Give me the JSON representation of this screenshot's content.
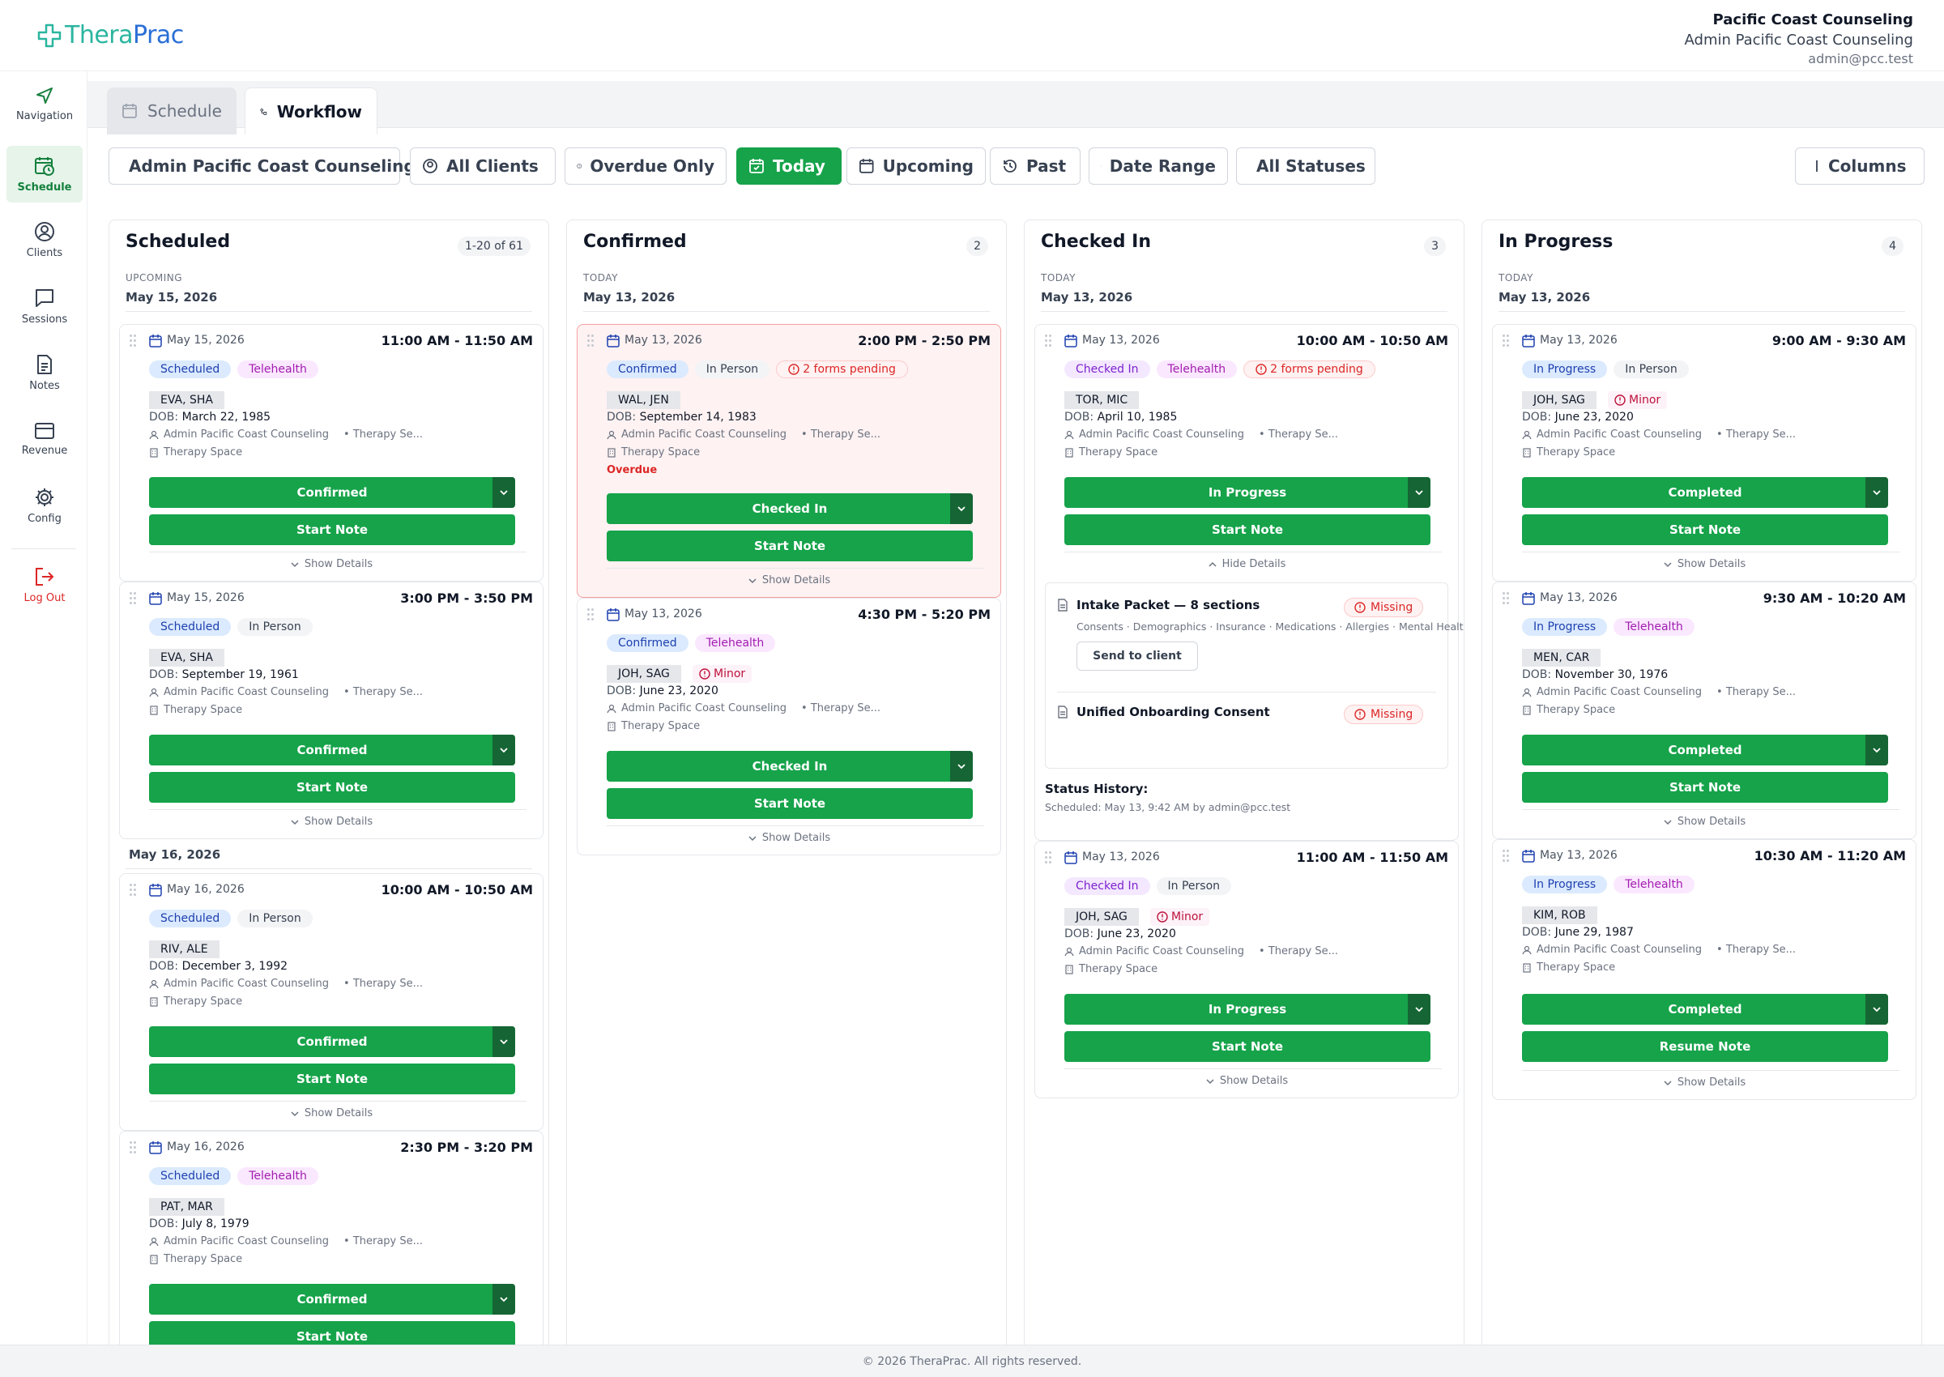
{
  "brand": {
    "logo_part1": "Thera",
    "logo_part2": "Prac",
    "primary": "#16a34a",
    "accent": "#2a6fd6"
  },
  "org": {
    "name": "Pacific Coast Counseling",
    "user": "Admin Pacific Coast Counseling",
    "email": "admin@pcc.test"
  },
  "sidebar": {
    "items": [
      {
        "label": "Navigation",
        "icon": "navigation-icon"
      },
      {
        "label": "Schedule",
        "icon": "calendar-icon"
      },
      {
        "label": "Clients",
        "icon": "user-circle-icon"
      },
      {
        "label": "Sessions",
        "icon": "chat-icon"
      },
      {
        "label": "Notes",
        "icon": "document-icon"
      },
      {
        "label": "Revenue",
        "icon": "credit-card-icon"
      },
      {
        "label": "Config",
        "icon": "gear-icon"
      }
    ],
    "logout": "Log Out"
  },
  "tabs": [
    {
      "label": "Schedule"
    },
    {
      "label": "Workflow"
    }
  ],
  "filters": {
    "user": "Admin Pacific Coast Counseling",
    "clients": "All Clients",
    "overdue": "Overdue Only",
    "today": "Today",
    "upcoming": "Upcoming",
    "past": "Past",
    "range": "Date Range",
    "statuses": "All Statuses",
    "columns": "Columns"
  },
  "common": {
    "provider": "Admin Pacific Coast Counseling",
    "service": "• Therapy Se...",
    "room": "Therapy Space",
    "dob_label": "DOB:",
    "show": "Show Details",
    "hide": "Hide Details",
    "start": "Start Note",
    "resume": "Resume Note"
  },
  "columns": [
    {
      "title": "Scheduled",
      "count": "1-20 of 61",
      "group": "UPCOMING",
      "date": "May 15, 2026",
      "group2_date": "May 16, 2026"
    },
    {
      "title": "Confirmed",
      "count": "2",
      "group": "TODAY",
      "date": "May 13, 2026"
    },
    {
      "title": "Checked In",
      "count": "3",
      "group": "TODAY",
      "date": "May 13, 2026"
    },
    {
      "title": "In Progress",
      "count": "4",
      "group": "TODAY",
      "date": "May 13, 2026"
    }
  ],
  "cards": [
    {
      "date": "May 15, 2026",
      "time": "11:00 AM - 11:50 AM",
      "status": "Scheduled",
      "mode": "Telehealth",
      "client": "EVA, SHA",
      "dob": "March 22, 1985",
      "action": "Confirmed"
    },
    {
      "date": "May 15, 2026",
      "time": "3:00 PM - 3:50 PM",
      "status": "Scheduled",
      "mode": "In Person",
      "client": "EVA, SHA",
      "dob": "September 19, 1961",
      "action": "Confirmed"
    },
    {
      "date": "May 16, 2026",
      "time": "10:00 AM - 10:50 AM",
      "status": "Scheduled",
      "mode": "In Person",
      "client": "RIV, ALE",
      "dob": "December 3, 1992",
      "action": "Confirmed"
    },
    {
      "date": "May 16, 2026",
      "time": "2:30 PM - 3:20 PM",
      "status": "Scheduled",
      "mode": "Telehealth",
      "client": "PAT, MAR",
      "dob": "July 8, 1979",
      "action": "Confirmed"
    },
    {
      "date": "May 13, 2026",
      "time": "2:00 PM - 2:50 PM",
      "status": "Confirmed",
      "mode": "In Person",
      "forms": "2 forms pending",
      "client": "WAL, JEN",
      "dob": "September 14, 1983",
      "overdue": "Overdue",
      "action": "Checked In"
    },
    {
      "date": "May 13, 2026",
      "time": "4:30 PM - 5:20 PM",
      "status": "Confirmed",
      "mode": "Telehealth",
      "client": "JOH, SAG",
      "minor": "Minor",
      "dob": "June 23, 2020",
      "action": "Checked In"
    },
    {
      "date": "May 13, 2026",
      "time": "10:00 AM - 10:50 AM",
      "status": "Checked In",
      "mode": "Telehealth",
      "forms": "2 forms pending",
      "client": "TOR, MIC",
      "dob": "April 10, 1985",
      "action": "In Progress"
    },
    {
      "date": "May 13, 2026",
      "time": "11:00 AM - 11:50 AM",
      "status": "Checked In",
      "mode": "In Person",
      "client": "JOH, SAG",
      "minor": "Minor",
      "dob": "June 23, 2020",
      "action": "In Progress"
    },
    {
      "date": "May 13, 2026",
      "time": "9:00 AM - 9:30 AM",
      "status": "In Progress",
      "mode": "In Person",
      "client": "JOH, SAG",
      "minor": "Minor",
      "dob": "June 23, 2020",
      "action": "Completed"
    },
    {
      "date": "May 13, 2026",
      "time": "9:30 AM - 10:20 AM",
      "status": "In Progress",
      "mode": "Telehealth",
      "client": "MEN, CAR",
      "dob": "November 30, 1976",
      "action": "Completed"
    },
    {
      "date": "May 13, 2026",
      "time": "10:30 AM - 11:20 AM",
      "status": "In Progress",
      "mode": "Telehealth",
      "client": "KIM, ROB",
      "dob": "June 29, 1987",
      "action": "Completed"
    }
  ],
  "details": {
    "doc1": "Intake Packet — 8 sections",
    "doc1_sub": "Consents · Demographics · Insurance · Medications · Allergies · Mental Health History ·",
    "send": "Send to client",
    "doc2": "Unified Onboarding Consent",
    "missing": "Missing",
    "history_label": "Status History:",
    "history": "Scheduled: May 13, 9:42 AM by admin@pcc.test"
  },
  "footer": "© 2026 TheraPrac. All rights reserved."
}
